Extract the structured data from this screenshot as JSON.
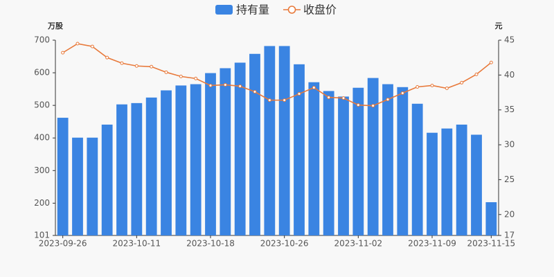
{
  "chart_data": {
    "type": "bar-line",
    "categories": [
      "2023-09-26",
      null,
      null,
      null,
      null,
      "2023-10-11",
      null,
      null,
      null,
      null,
      "2023-10-18",
      null,
      null,
      null,
      null,
      "2023-10-26",
      null,
      null,
      null,
      null,
      "2023-11-02",
      null,
      null,
      null,
      null,
      "2023-11-09",
      null,
      null,
      null,
      "2023-11-15"
    ],
    "series": [
      {
        "name": "持有量",
        "color": "#3a84e2",
        "axis": "y",
        "values": [
          462,
          401,
          401,
          441,
          503,
          507,
          524,
          546,
          561,
          565,
          599,
          614,
          631,
          658,
          682,
          682,
          626,
          571,
          544,
          527,
          554,
          584,
          565,
          556,
          505,
          416,
          429,
          441,
          410,
          203
        ]
      },
      {
        "name": "收盘价",
        "color": "#e8793a",
        "axis": "y2",
        "values": [
          43.2,
          44.5,
          44.1,
          42.5,
          41.7,
          41.3,
          41.2,
          40.4,
          39.8,
          39.5,
          38.5,
          38.6,
          38.4,
          37.6,
          36.4,
          36.4,
          37.3,
          38.2,
          36.8,
          36.7,
          35.7,
          35.6,
          36.5,
          37.4,
          38.3,
          38.5,
          38.1,
          38.9,
          40.1,
          41.8
        ]
      }
    ],
    "ylabel": "万股",
    "y2label": "元",
    "ylim": [
      101,
      700
    ],
    "yticks": [
      101,
      200,
      300,
      400,
      500,
      600,
      700
    ],
    "y2lim": [
      17,
      45
    ],
    "y2ticks": [
      17,
      20,
      25,
      30,
      35,
      40,
      45
    ]
  }
}
